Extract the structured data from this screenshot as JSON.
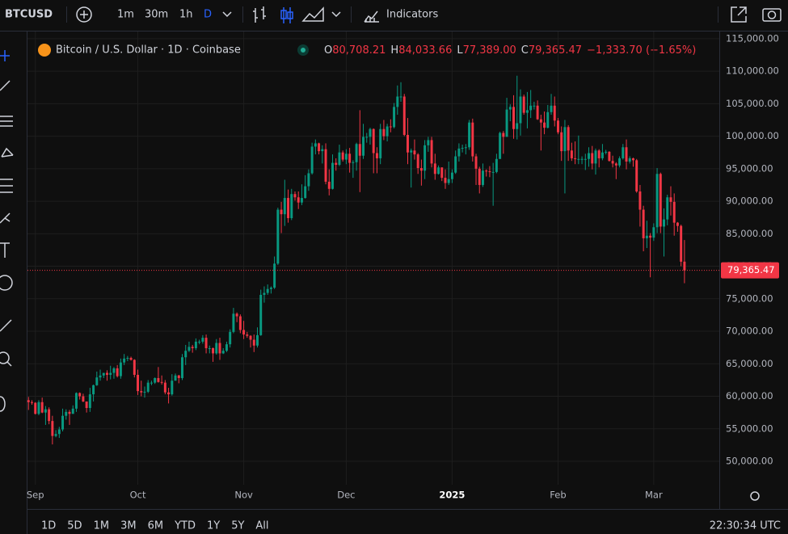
{
  "toolbar": {
    "symbol": "BTCUSD",
    "intervals": [
      "1m",
      "30m",
      "1h",
      "D"
    ],
    "indicators": "Indicators"
  },
  "chart_data": {
    "type": "candlestick",
    "title": "Bitcoin / U.S. Dollar · 1D · Coinbase",
    "ohlc_keys": [
      "O",
      "H",
      "L",
      "C"
    ],
    "ohlc_labels": [
      "80,708.21",
      "84,033.66",
      "77,389.00",
      "79,365.47"
    ],
    "change": "−1,333.70 (−1.65%)",
    "up_color": "#089981",
    "down_color": "#f23645",
    "grid": true,
    "xlim": [
      -0.3,
      202.2
    ],
    "xticks": [
      {
        "value": 2,
        "label": "Sep"
      },
      {
        "value": 32,
        "label": "Oct"
      },
      {
        "value": 63,
        "label": "Nov"
      },
      {
        "value": 93,
        "label": "Dec"
      },
      {
        "value": 124,
        "label": "2025"
      },
      {
        "value": 155,
        "label": "Feb"
      },
      {
        "value": 183,
        "label": "Mar"
      }
    ],
    "ylim": [
      46400,
      116100
    ],
    "yticks": [
      {
        "value": 50000,
        "label": "50,000.00"
      },
      {
        "value": 55000,
        "label": "55,000.00"
      },
      {
        "value": 60000,
        "label": "60,000.00"
      },
      {
        "value": 65000,
        "label": "65,000.00"
      },
      {
        "value": 70000,
        "label": "70,000.00"
      },
      {
        "value": 75000,
        "label": "75,000.00"
      },
      {
        "value": 80000,
        "label": "80,000.00"
      },
      {
        "value": 85000,
        "label": "85,000.00"
      },
      {
        "value": 90000,
        "label": "90,000.00"
      },
      {
        "value": 95000,
        "label": "95,000.00"
      },
      {
        "value": 100000,
        "label": "100,000.00"
      },
      {
        "value": 105000,
        "label": "105,000.00"
      },
      {
        "value": 110000,
        "label": "110,000.00"
      },
      {
        "value": 115000,
        "label": "115,000.00"
      }
    ],
    "last_price": {
      "value": 79365.47,
      "label": "79,365.47"
    },
    "candles": [
      [
        59400,
        59900,
        57900,
        59100
      ],
      [
        59100,
        59400,
        58700,
        59000
      ],
      [
        59000,
        59100,
        57200,
        57300
      ],
      [
        57300,
        59400,
        57100,
        59100
      ],
      [
        59100,
        59800,
        57400,
        57500
      ],
      [
        57500,
        58500,
        55600,
        58000
      ],
      [
        58000,
        58300,
        55700,
        56200
      ],
      [
        56200,
        57000,
        52600,
        53900
      ],
      [
        53900,
        54800,
        53700,
        54200
      ],
      [
        54200,
        55300,
        53600,
        54900
      ],
      [
        54900,
        58100,
        54600,
        57000
      ],
      [
        57000,
        58000,
        56400,
        57600
      ],
      [
        57600,
        57900,
        55600,
        57300
      ],
      [
        57300,
        58600,
        57300,
        58100
      ],
      [
        58100,
        60600,
        57600,
        60500
      ],
      [
        60500,
        60600,
        59500,
        60000
      ],
      [
        60000,
        60400,
        59100,
        59200
      ],
      [
        59200,
        59200,
        57500,
        58200
      ],
      [
        58200,
        61300,
        57600,
        60300
      ],
      [
        60300,
        61800,
        59200,
        61700
      ],
      [
        61700,
        63800,
        61600,
        62900
      ],
      [
        62900,
        64100,
        62400,
        63200
      ],
      [
        63200,
        63600,
        62800,
        63600
      ],
      [
        63600,
        64000,
        62400,
        63300
      ],
      [
        63300,
        64700,
        62600,
        63600
      ],
      [
        63600,
        64500,
        62700,
        64300
      ],
      [
        64300,
        64800,
        62900,
        63100
      ],
      [
        63100,
        65800,
        62700,
        65200
      ],
      [
        65200,
        66500,
        64800,
        65800
      ],
      [
        65800,
        66200,
        65400,
        65900
      ],
      [
        65900,
        66100,
        65500,
        65600
      ],
      [
        65600,
        65700,
        62900,
        63300
      ],
      [
        63300,
        64100,
        60200,
        60800
      ],
      [
        60800,
        62400,
        60000,
        60600
      ],
      [
        60600,
        61500,
        59800,
        60700
      ],
      [
        60700,
        62500,
        60500,
        62100
      ],
      [
        62100,
        62400,
        61700,
        62100
      ],
      [
        62100,
        62900,
        61900,
        62800
      ],
      [
        62800,
        64500,
        62100,
        62200
      ],
      [
        62200,
        63200,
        61800,
        62100
      ],
      [
        62100,
        62500,
        60300,
        60600
      ],
      [
        60600,
        61300,
        58900,
        60300
      ],
      [
        60300,
        63400,
        60100,
        62400
      ],
      [
        62400,
        63500,
        62400,
        63200
      ],
      [
        63200,
        63300,
        62000,
        62800
      ],
      [
        62800,
        66500,
        62500,
        66000
      ],
      [
        66000,
        67900,
        64800,
        67000
      ],
      [
        67000,
        68400,
        66800,
        67600
      ],
      [
        67600,
        67900,
        66700,
        67400
      ],
      [
        67400,
        68900,
        67100,
        68400
      ],
      [
        68400,
        68700,
        68000,
        68400
      ],
      [
        68400,
        69400,
        68100,
        69000
      ],
      [
        69000,
        69500,
        66600,
        67400
      ],
      [
        67400,
        67800,
        66600,
        67400
      ],
      [
        67400,
        67500,
        65300,
        66600
      ],
      [
        66600,
        68800,
        66400,
        68200
      ],
      [
        68200,
        69000,
        65600,
        66600
      ],
      [
        66600,
        67400,
        66500,
        67000
      ],
      [
        67000,
        68400,
        66800,
        68000
      ],
      [
        68000,
        70300,
        67500,
        69900
      ],
      [
        69900,
        73600,
        69700,
        72700
      ],
      [
        72700,
        72900,
        71400,
        72300
      ],
      [
        72300,
        72600,
        69700,
        70200
      ],
      [
        70200,
        71600,
        68800,
        69500
      ],
      [
        69500,
        69900,
        69000,
        69300
      ],
      [
        69300,
        69400,
        67500,
        68700
      ],
      [
        68700,
        69500,
        66800,
        67800
      ],
      [
        67800,
        70600,
        67500,
        69400
      ],
      [
        69400,
        76400,
        69300,
        75600
      ],
      [
        75600,
        76900,
        74400,
        75900
      ],
      [
        75900,
        77200,
        75600,
        76500
      ],
      [
        76500,
        76900,
        75800,
        76700
      ],
      [
        76700,
        81500,
        76500,
        80400
      ],
      [
        80400,
        89000,
        80200,
        88700
      ],
      [
        88700,
        89900,
        85100,
        88000
      ],
      [
        88000,
        93300,
        86200,
        90500
      ],
      [
        90500,
        91800,
        86700,
        87400
      ],
      [
        87400,
        91900,
        87100,
        91100
      ],
      [
        91100,
        91500,
        90100,
        90600
      ],
      [
        90600,
        91500,
        88800,
        89800
      ],
      [
        89800,
        92600,
        89400,
        90500
      ],
      [
        90500,
        94000,
        90400,
        92300
      ],
      [
        92300,
        94900,
        91600,
        94300
      ],
      [
        94300,
        99000,
        94100,
        98400
      ],
      [
        98400,
        99500,
        97200,
        98900
      ],
      [
        98900,
        99000,
        97200,
        97700
      ],
      [
        97700,
        98600,
        95800,
        98000
      ],
      [
        98000,
        98900,
        92600,
        93000
      ],
      [
        93000,
        94900,
        90900,
        91900
      ],
      [
        91900,
        97200,
        91800,
        95900
      ],
      [
        95900,
        96600,
        94700,
        95600
      ],
      [
        95600,
        98700,
        95400,
        97500
      ],
      [
        97500,
        97800,
        96100,
        96400
      ],
      [
        96400,
        98000,
        95700,
        97300
      ],
      [
        97300,
        98200,
        94400,
        95900
      ],
      [
        95900,
        96300,
        93600,
        96000
      ],
      [
        96000,
        99000,
        94700,
        98800
      ],
      [
        98800,
        104000,
        91400,
        97000
      ],
      [
        97000,
        101900,
        96500,
        99900
      ],
      [
        99900,
        100500,
        99000,
        99900
      ],
      [
        99900,
        101300,
        98700,
        101100
      ],
      [
        101100,
        101200,
        94300,
        97400
      ],
      [
        97400,
        98300,
        94300,
        96600
      ],
      [
        96600,
        101900,
        95700,
        101100
      ],
      [
        101100,
        102500,
        99400,
        100000
      ],
      [
        100000,
        101900,
        99200,
        101500
      ],
      [
        101500,
        102600,
        100600,
        101400
      ],
      [
        101400,
        105100,
        101200,
        104500
      ],
      [
        104500,
        107800,
        103300,
        106100
      ],
      [
        106100,
        108300,
        105300,
        106100
      ],
      [
        106100,
        106500,
        100000,
        100200
      ],
      [
        100200,
        102800,
        95700,
        97500
      ],
      [
        97500,
        98100,
        92100,
        97800
      ],
      [
        97800,
        99500,
        96400,
        97200
      ],
      [
        97200,
        97400,
        94200,
        95100
      ],
      [
        95100,
        96400,
        92400,
        94700
      ],
      [
        94700,
        99400,
        93400,
        98600
      ],
      [
        98600,
        99900,
        97600,
        99400
      ],
      [
        99400,
        99900,
        95200,
        95800
      ],
      [
        95800,
        97300,
        93300,
        94200
      ],
      [
        94200,
        95500,
        94100,
        95200
      ],
      [
        95200,
        95200,
        93100,
        93600
      ],
      [
        93600,
        94900,
        91900,
        92800
      ],
      [
        92800,
        96100,
        92500,
        93400
      ],
      [
        93400,
        94900,
        92800,
        94400
      ],
      [
        94400,
        97800,
        94200,
        96900
      ],
      [
        96900,
        98900,
        96100,
        98100
      ],
      [
        98100,
        98700,
        97500,
        98200
      ],
      [
        98200,
        98800,
        97200,
        98300
      ],
      [
        98300,
        102500,
        97900,
        102100
      ],
      [
        102100,
        102700,
        96100,
        96900
      ],
      [
        96900,
        97300,
        92500,
        95000
      ],
      [
        95000,
        95300,
        91200,
        92500
      ],
      [
        92500,
        95800,
        92200,
        94700
      ],
      [
        94700,
        94900,
        93800,
        94600
      ],
      [
        94600,
        95400,
        93700,
        94500
      ],
      [
        94500,
        95900,
        89300,
        94500
      ],
      [
        94500,
        97300,
        94300,
        96500
      ],
      [
        96500,
        100700,
        96500,
        100500
      ],
      [
        100500,
        100800,
        97300,
        99900
      ],
      [
        99900,
        105900,
        99900,
        104100
      ],
      [
        104100,
        104900,
        102300,
        104500
      ],
      [
        104500,
        106300,
        99600,
        101100
      ],
      [
        101100,
        109300,
        99500,
        102000
      ],
      [
        102000,
        107200,
        100100,
        106100
      ],
      [
        106100,
        106400,
        103300,
        103600
      ],
      [
        103600,
        106800,
        101200,
        104000
      ],
      [
        104000,
        107100,
        102800,
        104700
      ],
      [
        104700,
        105300,
        104100,
        104700
      ],
      [
        104700,
        105500,
        102500,
        102600
      ],
      [
        102600,
        103300,
        97800,
        102100
      ],
      [
        102100,
        103800,
        100300,
        101300
      ],
      [
        101300,
        104800,
        101200,
        103700
      ],
      [
        103700,
        106500,
        103300,
        104700
      ],
      [
        104700,
        106100,
        101500,
        102400
      ],
      [
        102400,
        102800,
        100300,
        100600
      ],
      [
        100600,
        101500,
        96200,
        97700
      ],
      [
        97700,
        102500,
        91200,
        101400
      ],
      [
        101400,
        101700,
        96200,
        97800
      ],
      [
        97800,
        99000,
        96200,
        96600
      ],
      [
        96600,
        99200,
        95700,
        96500
      ],
      [
        96500,
        100100,
        95700,
        96500
      ],
      [
        96500,
        96900,
        95700,
        96500
      ],
      [
        96500,
        97300,
        94800,
        96500
      ],
      [
        96500,
        98300,
        95300,
        97400
      ],
      [
        97400,
        98500,
        94900,
        95800
      ],
      [
        95800,
        98100,
        94100,
        97800
      ],
      [
        97800,
        98000,
        95200,
        96600
      ],
      [
        96600,
        98800,
        96300,
        97500
      ],
      [
        97500,
        97900,
        97200,
        97600
      ],
      [
        97600,
        97700,
        96100,
        96200
      ],
      [
        96200,
        97000,
        95200,
        95800
      ],
      [
        95800,
        96000,
        93400,
        95500
      ],
      [
        95500,
        96900,
        95200,
        96600
      ],
      [
        96600,
        98800,
        96400,
        98300
      ],
      [
        98300,
        99500,
        94900,
        96100
      ],
      [
        96100,
        96900,
        95800,
        96600
      ],
      [
        96600,
        96700,
        95300,
        96300
      ],
      [
        96300,
        96500,
        91300,
        91500
      ],
      [
        91500,
        92500,
        86100,
        88700
      ],
      [
        88700,
        89300,
        82300,
        84300
      ],
      [
        84300,
        87000,
        82800,
        84700
      ],
      [
        84700,
        85100,
        78300,
        84400
      ],
      [
        84400,
        86600,
        83900,
        86000
      ],
      [
        86000,
        95100,
        85100,
        94200
      ],
      [
        94200,
        94400,
        85100,
        86100
      ],
      [
        86100,
        88900,
        81500,
        87200
      ],
      [
        87200,
        91000,
        86300,
        90600
      ],
      [
        90600,
        92300,
        87800,
        89900
      ],
      [
        89900,
        91200,
        84700,
        86700
      ],
      [
        86700,
        86800,
        85300,
        86200
      ],
      [
        86200,
        86400,
        80000,
        80700
      ],
      [
        80708.21,
        84033.66,
        77389,
        79365.47
      ]
    ]
  },
  "ranges": [
    "1D",
    "5D",
    "1M",
    "3M",
    "6M",
    "YTD",
    "1Y",
    "5Y",
    "All"
  ],
  "clock": "22:30:34 UTC"
}
